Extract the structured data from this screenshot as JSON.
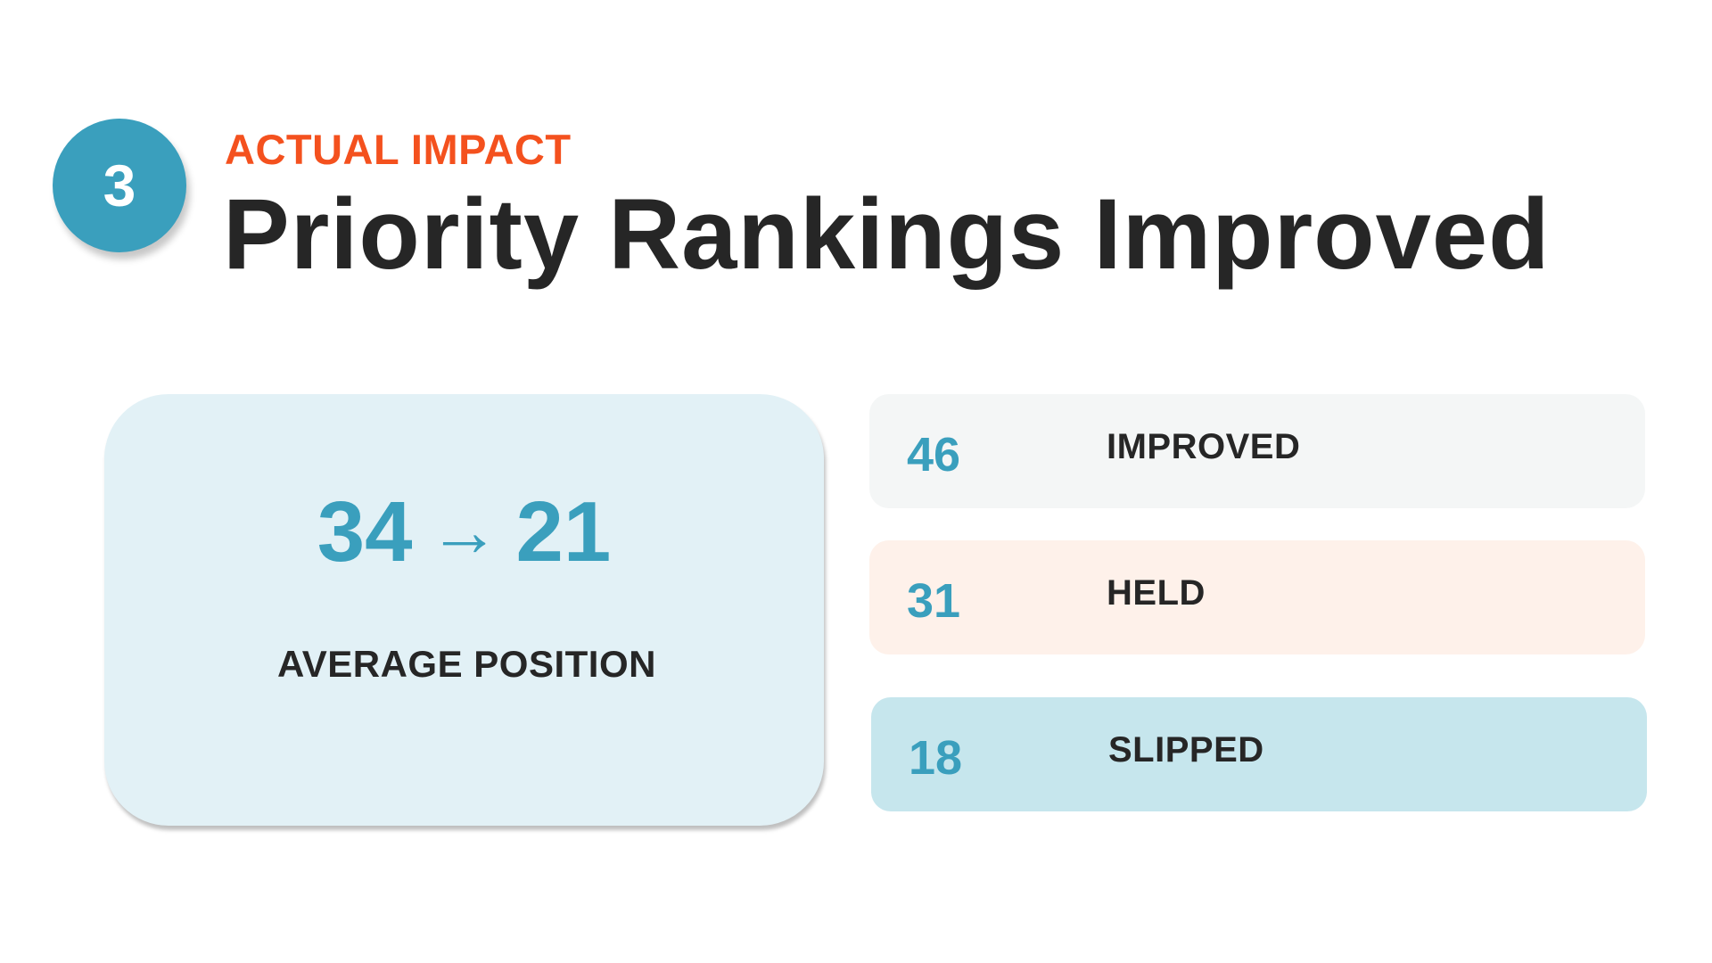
{
  "badge": {
    "number": "3",
    "color": "#3a9fbd"
  },
  "header": {
    "eyebrow": "ACTUAL IMPACT",
    "title": "Priority Rankings Improved"
  },
  "average_card": {
    "from": "34",
    "arrow": "→",
    "to": "21",
    "label": "AVERAGE POSITION"
  },
  "stats": [
    {
      "value": "46",
      "label": "IMPROVED",
      "bg": "#f4f6f6"
    },
    {
      "value": "31",
      "label": "HELD",
      "bg": "#fef1ea"
    },
    {
      "value": "18",
      "label": "SLIPPED",
      "bg": "#c6e6ed"
    }
  ],
  "colors": {
    "accent": "#3a9fbd",
    "eyebrow": "#f4511e",
    "text": "#262626"
  }
}
